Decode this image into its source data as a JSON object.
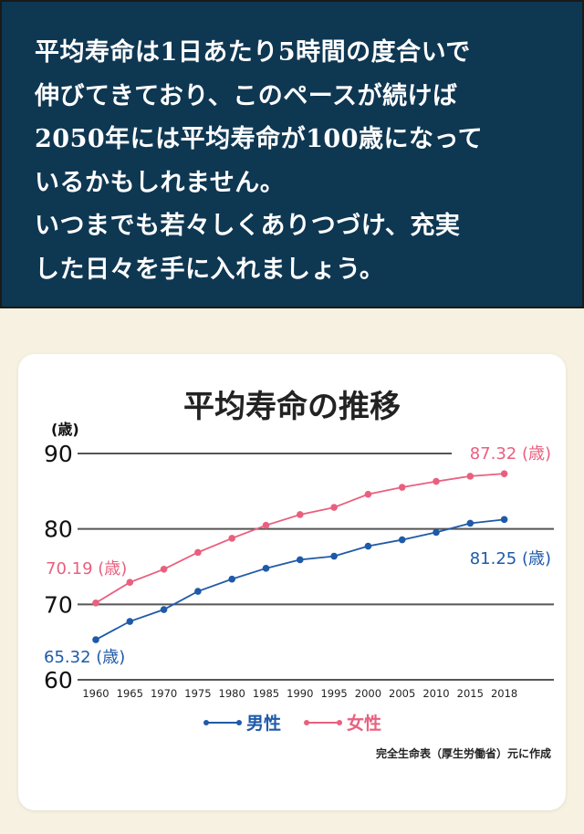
{
  "banner": {
    "lines": [
      "平均寿命は1日あたり5時間の度合いで",
      "伸びてきており、このペースが続けば",
      "2050年には平均寿命が100歳になって",
      "いるかもしれません。",
      "いつまでも若々しくありつづけ、充実",
      "した日々を手に入れましょう。"
    ]
  },
  "colors": {
    "male": "#1f5aa8",
    "female": "#e9607f",
    "banner": "#0e3752"
  },
  "chart_data": {
    "type": "line",
    "title": "平均寿命の推移",
    "ylabel": "(歳)",
    "xlabel": "",
    "ylim": [
      60,
      90
    ],
    "yticks": [
      "60",
      "70",
      "80",
      "90"
    ],
    "categories": [
      "1960",
      "1965",
      "1970",
      "1975",
      "1980",
      "1985",
      "1990",
      "1995",
      "2000",
      "2005",
      "2010",
      "2015",
      "2018"
    ],
    "grid": true,
    "legend_position": "bottom",
    "series": [
      {
        "name": "男性",
        "values": [
          65.32,
          67.74,
          69.31,
          71.73,
          73.35,
          74.78,
          75.92,
          76.38,
          77.72,
          78.56,
          79.55,
          80.75,
          81.25
        ]
      },
      {
        "name": "女性",
        "values": [
          70.19,
          72.92,
          74.66,
          76.89,
          78.76,
          80.48,
          81.9,
          82.85,
          84.6,
          85.52,
          86.3,
          86.99,
          87.32
        ]
      }
    ],
    "annotations": {
      "male_start": "65.32 (歳)",
      "male_end": "81.25 (歳)",
      "female_start": "70.19 (歳)",
      "female_end": "87.32 (歳)"
    },
    "source": "完全生命表（厚生労働省）元に作成"
  }
}
